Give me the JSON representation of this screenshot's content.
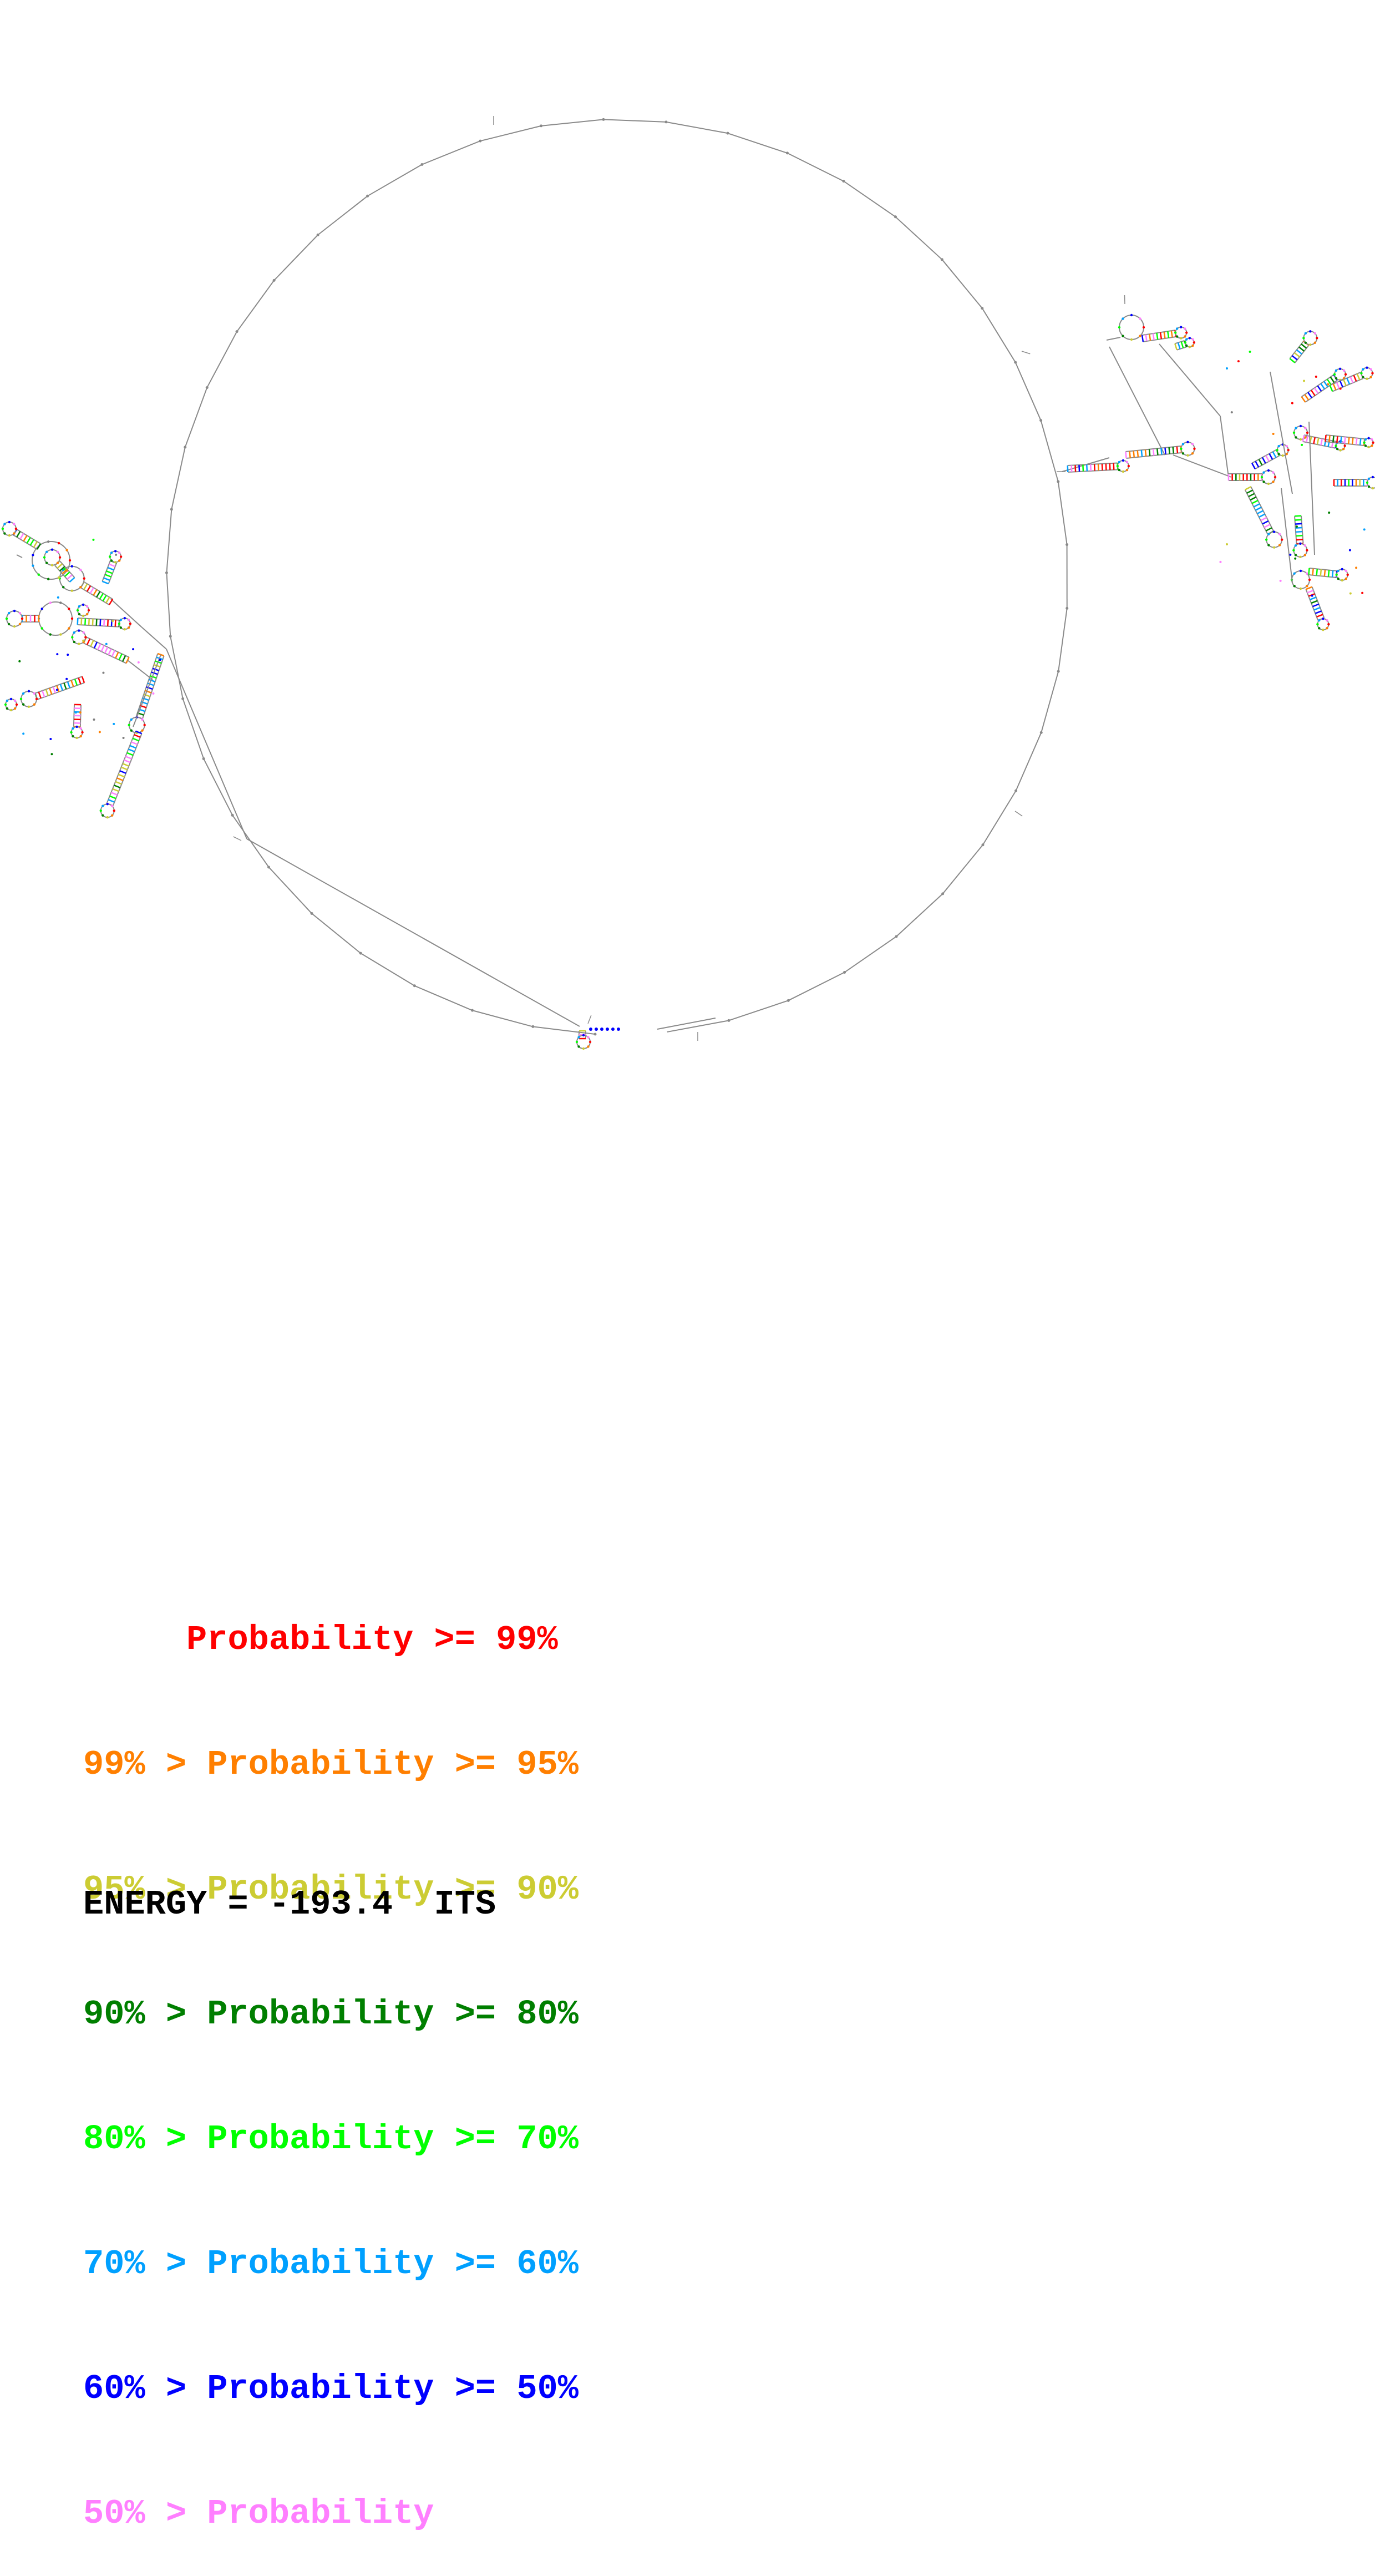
{
  "figure": {
    "background": "#ffffff",
    "backbone_color": "#8a8a8a",
    "base_colors": [
      "#ff0000",
      "#ff7f00",
      "#cccc33",
      "#007f00",
      "#00ff00",
      "#00a0ff",
      "#0000ff",
      "#ff7fff",
      "#7f7f7f"
    ]
  },
  "legend": {
    "rows": [
      {
        "text": "     Probability >= 99%",
        "color": "#ff0000"
      },
      {
        "text": "99% > Probability >= 95%",
        "color": "#ff7f00"
      },
      {
        "text": "95% > Probability >= 90%",
        "color": "#cccc33"
      },
      {
        "text": "90% > Probability >= 80%",
        "color": "#007f00"
      },
      {
        "text": "80% > Probability >= 70%",
        "color": "#00ff00"
      },
      {
        "text": "70% > Probability >= 60%",
        "color": "#00a0ff"
      },
      {
        "text": "60% > Probability >= 50%",
        "color": "#0000ff"
      },
      {
        "text": "50% > Probability",
        "color": "#ff7fff"
      }
    ]
  },
  "energy_label": "ENERGY = -193.4  ITS"
}
